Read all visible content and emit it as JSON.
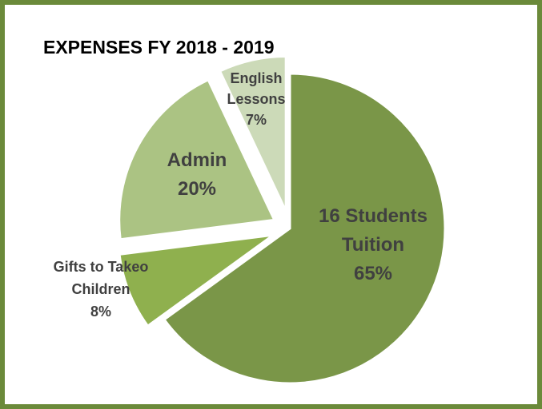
{
  "chart_data": {
    "type": "pie",
    "title": "EXPENSES FY 2018 - 2019",
    "slices": [
      {
        "name_lines": [
          "16 Students",
          "Tuition"
        ],
        "percent_label": "65%",
        "value": 65,
        "color": "#7a9648",
        "exploded": false
      },
      {
        "name_lines": [
          "Gifts to Takeo",
          "Children"
        ],
        "percent_label": "8%",
        "value": 8,
        "color": "#8fb04e",
        "exploded": true
      },
      {
        "name_lines": [
          "Admin"
        ],
        "percent_label": "20%",
        "value": 20,
        "color": "#abc383",
        "exploded": true
      },
      {
        "name_lines": [
          "English",
          "Lessons"
        ],
        "percent_label": "7%",
        "value": 7,
        "color": "#ccdab8",
        "exploded": true
      }
    ],
    "legend": "none",
    "frame_color": "#6b8a3a"
  }
}
